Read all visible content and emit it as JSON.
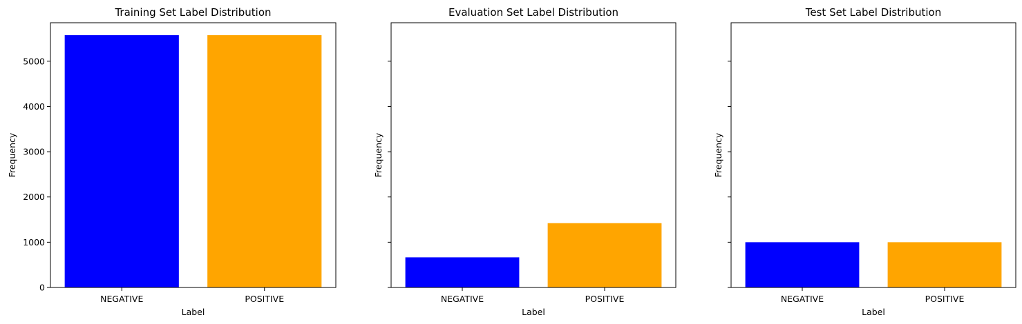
{
  "chart_data": [
    {
      "type": "bar",
      "title": "Training Set Label Distribution",
      "xlabel": "Label",
      "ylabel": "Frequency",
      "categories": [
        "NEGATIVE",
        "POSITIVE"
      ],
      "values": [
        5575,
        5575
      ],
      "colors": [
        "#0000ff",
        "#ffa500"
      ],
      "ylim": [
        0,
        5850
      ],
      "yticks": [
        0,
        1000,
        2000,
        3000,
        4000,
        5000
      ],
      "show_ytick_labels": true,
      "grid": false
    },
    {
      "type": "bar",
      "title": "Evaluation Set Label Distribution",
      "xlabel": "Label",
      "ylabel": "Frequency",
      "categories": [
        "NEGATIVE",
        "POSITIVE"
      ],
      "values": [
        665,
        1421
      ],
      "colors": [
        "#0000ff",
        "#ffa500"
      ],
      "ylim": [
        0,
        5850
      ],
      "yticks": [
        0,
        1000,
        2000,
        3000,
        4000,
        5000
      ],
      "show_ytick_labels": false,
      "grid": false
    },
    {
      "type": "bar",
      "title": "Test Set Label Distribution",
      "xlabel": "Label",
      "ylabel": "Frequency",
      "categories": [
        "NEGATIVE",
        "POSITIVE"
      ],
      "values": [
        1000,
        1000
      ],
      "colors": [
        "#0000ff",
        "#ffa500"
      ],
      "ylim": [
        0,
        5850
      ],
      "yticks": [
        0,
        1000,
        2000,
        3000,
        4000,
        5000
      ],
      "show_ytick_labels": false,
      "grid": false
    }
  ]
}
